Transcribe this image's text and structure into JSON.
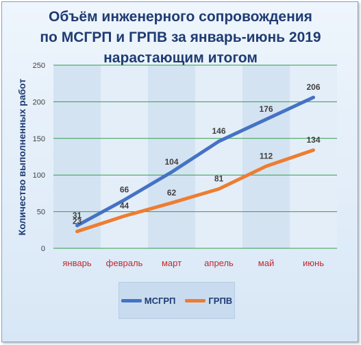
{
  "title_lines": [
    "Объём инженерного сопровождения",
    "по МСГРП и ГРПВ за январь-июнь 2019",
    "нарастающим итогом"
  ],
  "chart_data": {
    "type": "line",
    "title": "Объём инженерного сопровождения по МСГРП и ГРПВ за январь-июнь 2019 нарастающим итогом",
    "xlabel": "",
    "ylabel": "Количество выполненных работ",
    "categories": [
      "январь",
      "февраль",
      "март",
      "апрель",
      "май",
      "июнь"
    ],
    "series": [
      {
        "name": "МСГРП",
        "values": [
          31,
          66,
          104,
          146,
          176,
          206
        ],
        "color": "#4472c4"
      },
      {
        "name": "ГРПВ",
        "values": [
          23,
          44,
          62,
          81,
          112,
          134
        ],
        "color": "#ed7d31"
      }
    ],
    "ylim": [
      0,
      250
    ],
    "yticks": [
      0,
      50,
      100,
      150,
      200,
      250
    ],
    "grid": true,
    "legend_position": "bottom",
    "colors": {
      "title": "#1f3b73",
      "category_labels": "#c0282d",
      "data_labels": "#404040",
      "grid": "#2e9e4a"
    }
  }
}
